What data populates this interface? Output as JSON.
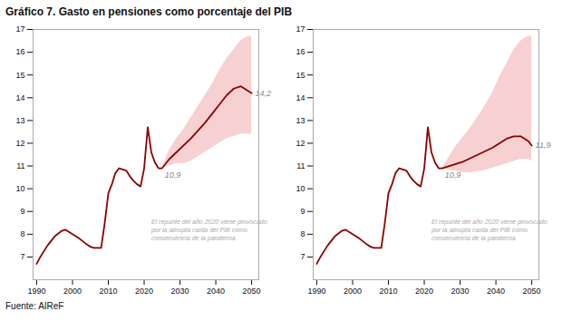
{
  "chart_data": [
    {
      "type": "line",
      "title": "Gráfico 7. Gasto en pensiones como porcentaje del PIB",
      "source": "Fuente: AIReF",
      "x": [
        1990,
        1991,
        1993,
        1995,
        1997,
        1998,
        2000,
        2002,
        2004,
        2005,
        2006,
        2007,
        2008,
        2009,
        2010,
        2011,
        2012,
        2013,
        2014,
        2015,
        2016,
        2017,
        2018,
        2019,
        2020,
        2021,
        2022,
        2023,
        2024,
        2025,
        2027,
        2029,
        2031,
        2033,
        2035,
        2037,
        2039,
        2041,
        2043,
        2045,
        2047,
        2049,
        2050
      ],
      "values": [
        6.7,
        7.0,
        7.5,
        7.9,
        8.15,
        8.2,
        8.0,
        7.8,
        7.55,
        7.45,
        7.4,
        7.4,
        7.4,
        8.5,
        9.8,
        10.2,
        10.7,
        10.9,
        10.85,
        10.8,
        10.55,
        10.35,
        10.2,
        10.1,
        10.9,
        12.7,
        11.6,
        11.15,
        10.9,
        10.9,
        11.3,
        11.6,
        11.9,
        12.2,
        12.55,
        12.9,
        13.3,
        13.7,
        14.1,
        14.4,
        14.5,
        14.3,
        14.2
      ],
      "color": "#8B0000",
      "band_x": [
        2025,
        2027,
        2029,
        2031,
        2033,
        2035,
        2037,
        2039,
        2041,
        2043,
        2045,
        2047,
        2049,
        2050
      ],
      "band_upper": [
        10.9,
        11.7,
        12.2,
        12.6,
        13.1,
        13.6,
        14.1,
        14.6,
        15.2,
        15.7,
        16.1,
        16.5,
        16.7,
        16.7
      ],
      "band_lower": [
        10.9,
        11.0,
        11.1,
        11.1,
        11.2,
        11.4,
        11.6,
        11.8,
        12.0,
        12.2,
        12.3,
        12.4,
        12.4,
        12.4
      ],
      "band_color": "#f2b8b8",
      "annotations": [
        {
          "text": "10,9",
          "x": 2025,
          "y": 10.9,
          "color": "#888888"
        },
        {
          "text": "14,2",
          "x": 2050,
          "y": 14.2,
          "color": "#888888"
        },
        {
          "text": "El repunte del año 2020 viene provocado\npor la abrupta caída del PIB como\nconsecuencia de la pandemia",
          "x": 2022,
          "y": 8.7,
          "color": "#aaaaaa"
        }
      ],
      "xlim": [
        1989,
        2052
      ],
      "xticks": [
        1990,
        2000,
        2010,
        2020,
        2030,
        2040,
        2050
      ],
      "ylim": [
        6,
        17
      ],
      "yticks": [
        7,
        8,
        9,
        10,
        11,
        12,
        13,
        14,
        15,
        16,
        17
      ],
      "grid": false
    },
    {
      "type": "line",
      "x": [
        1990,
        1991,
        1993,
        1995,
        1997,
        1998,
        2000,
        2002,
        2004,
        2005,
        2006,
        2007,
        2008,
        2009,
        2010,
        2011,
        2012,
        2013,
        2014,
        2015,
        2016,
        2017,
        2018,
        2019,
        2020,
        2021,
        2022,
        2023,
        2024,
        2025,
        2027,
        2029,
        2031,
        2033,
        2035,
        2037,
        2039,
        2041,
        2043,
        2045,
        2047,
        2049,
        2050
      ],
      "values": [
        6.7,
        7.0,
        7.5,
        7.9,
        8.15,
        8.2,
        8.0,
        7.8,
        7.55,
        7.45,
        7.4,
        7.4,
        7.4,
        8.5,
        9.8,
        10.2,
        10.7,
        10.9,
        10.85,
        10.8,
        10.55,
        10.35,
        10.2,
        10.1,
        10.9,
        12.7,
        11.6,
        11.15,
        10.9,
        10.9,
        11.0,
        11.1,
        11.2,
        11.35,
        11.5,
        11.65,
        11.8,
        12.0,
        12.2,
        12.3,
        12.3,
        12.1,
        11.9
      ],
      "color": "#8B0000",
      "band_x": [
        2025,
        2027,
        2029,
        2031,
        2033,
        2035,
        2037,
        2039,
        2041,
        2043,
        2045,
        2047,
        2049,
        2050
      ],
      "band_upper": [
        10.9,
        11.4,
        11.9,
        12.3,
        12.7,
        13.15,
        13.65,
        14.2,
        14.9,
        15.5,
        16.1,
        16.5,
        16.7,
        16.7
      ],
      "band_lower": [
        10.9,
        10.8,
        10.75,
        10.7,
        10.7,
        10.75,
        10.8,
        10.9,
        11.0,
        11.1,
        11.2,
        11.3,
        11.3,
        11.2
      ],
      "band_color": "#f2b8b8",
      "annotations": [
        {
          "text": "10,9",
          "x": 2025,
          "y": 10.9,
          "color": "#888888"
        },
        {
          "text": "11,9",
          "x": 2050,
          "y": 11.9,
          "color": "#888888"
        },
        {
          "text": "El repunte del año 2020 viene provocado\npor la abrupta caída del PIB como\nconsecuencia de la pandemia",
          "x": 2022,
          "y": 8.7,
          "color": "#aaaaaa"
        }
      ],
      "xlim": [
        1989,
        2052
      ],
      "xticks": [
        1990,
        2000,
        2010,
        2020,
        2030,
        2040,
        2050
      ],
      "ylim": [
        6,
        17
      ],
      "yticks": [
        7,
        8,
        9,
        10,
        11,
        12,
        13,
        14,
        15,
        16,
        17
      ],
      "grid": false
    }
  ]
}
